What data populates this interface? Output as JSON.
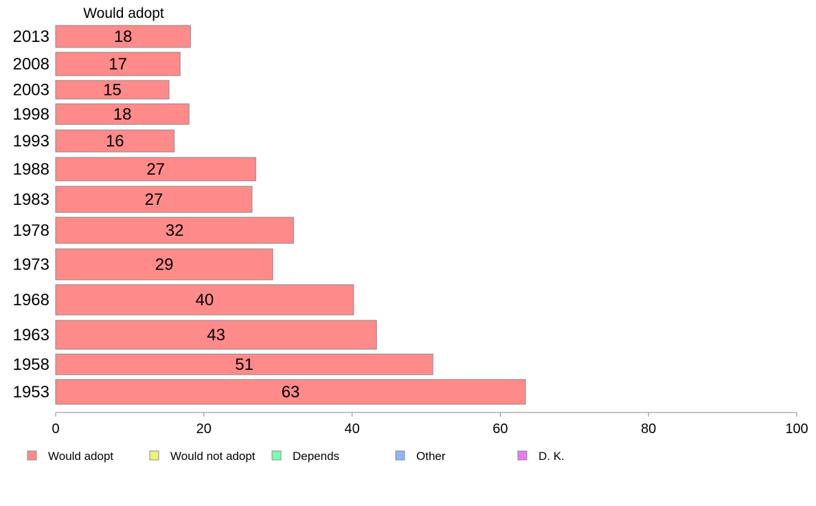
{
  "chart_data": {
    "type": "bar",
    "orientation": "horizontal",
    "title": "Would adopt",
    "categories": [
      "2013",
      "2008",
      "2003",
      "1998",
      "1993",
      "1988",
      "1983",
      "1978",
      "1973",
      "1968",
      "1963",
      "1958",
      "1953"
    ],
    "series": [
      {
        "name": "Would adopt",
        "color": "#ff8a8a",
        "values": [
          18.2,
          16.8,
          15.3,
          18.0,
          16.0,
          27.0,
          26.5,
          32.1,
          29.3,
          40.2,
          43.3,
          50.9,
          63.4
        ],
        "labels": [
          "18",
          "17",
          "15",
          "18",
          "16",
          "27",
          "27",
          "32",
          "29",
          "40",
          "43",
          "51",
          "63"
        ]
      }
    ],
    "xlim": [
      0,
      100
    ],
    "xticks": [
      0,
      20,
      40,
      60,
      80,
      100
    ],
    "legend_position": "bottom",
    "legend": [
      {
        "label": "Would adopt",
        "color": "#ff8a8a"
      },
      {
        "label": "Would not adopt",
        "color": "#eaf57a"
      },
      {
        "label": "Depends",
        "color": "#7affb3"
      },
      {
        "label": "Other",
        "color": "#8ab8f5"
      },
      {
        "label": "D. K.",
        "color": "#e87af5"
      }
    ]
  }
}
